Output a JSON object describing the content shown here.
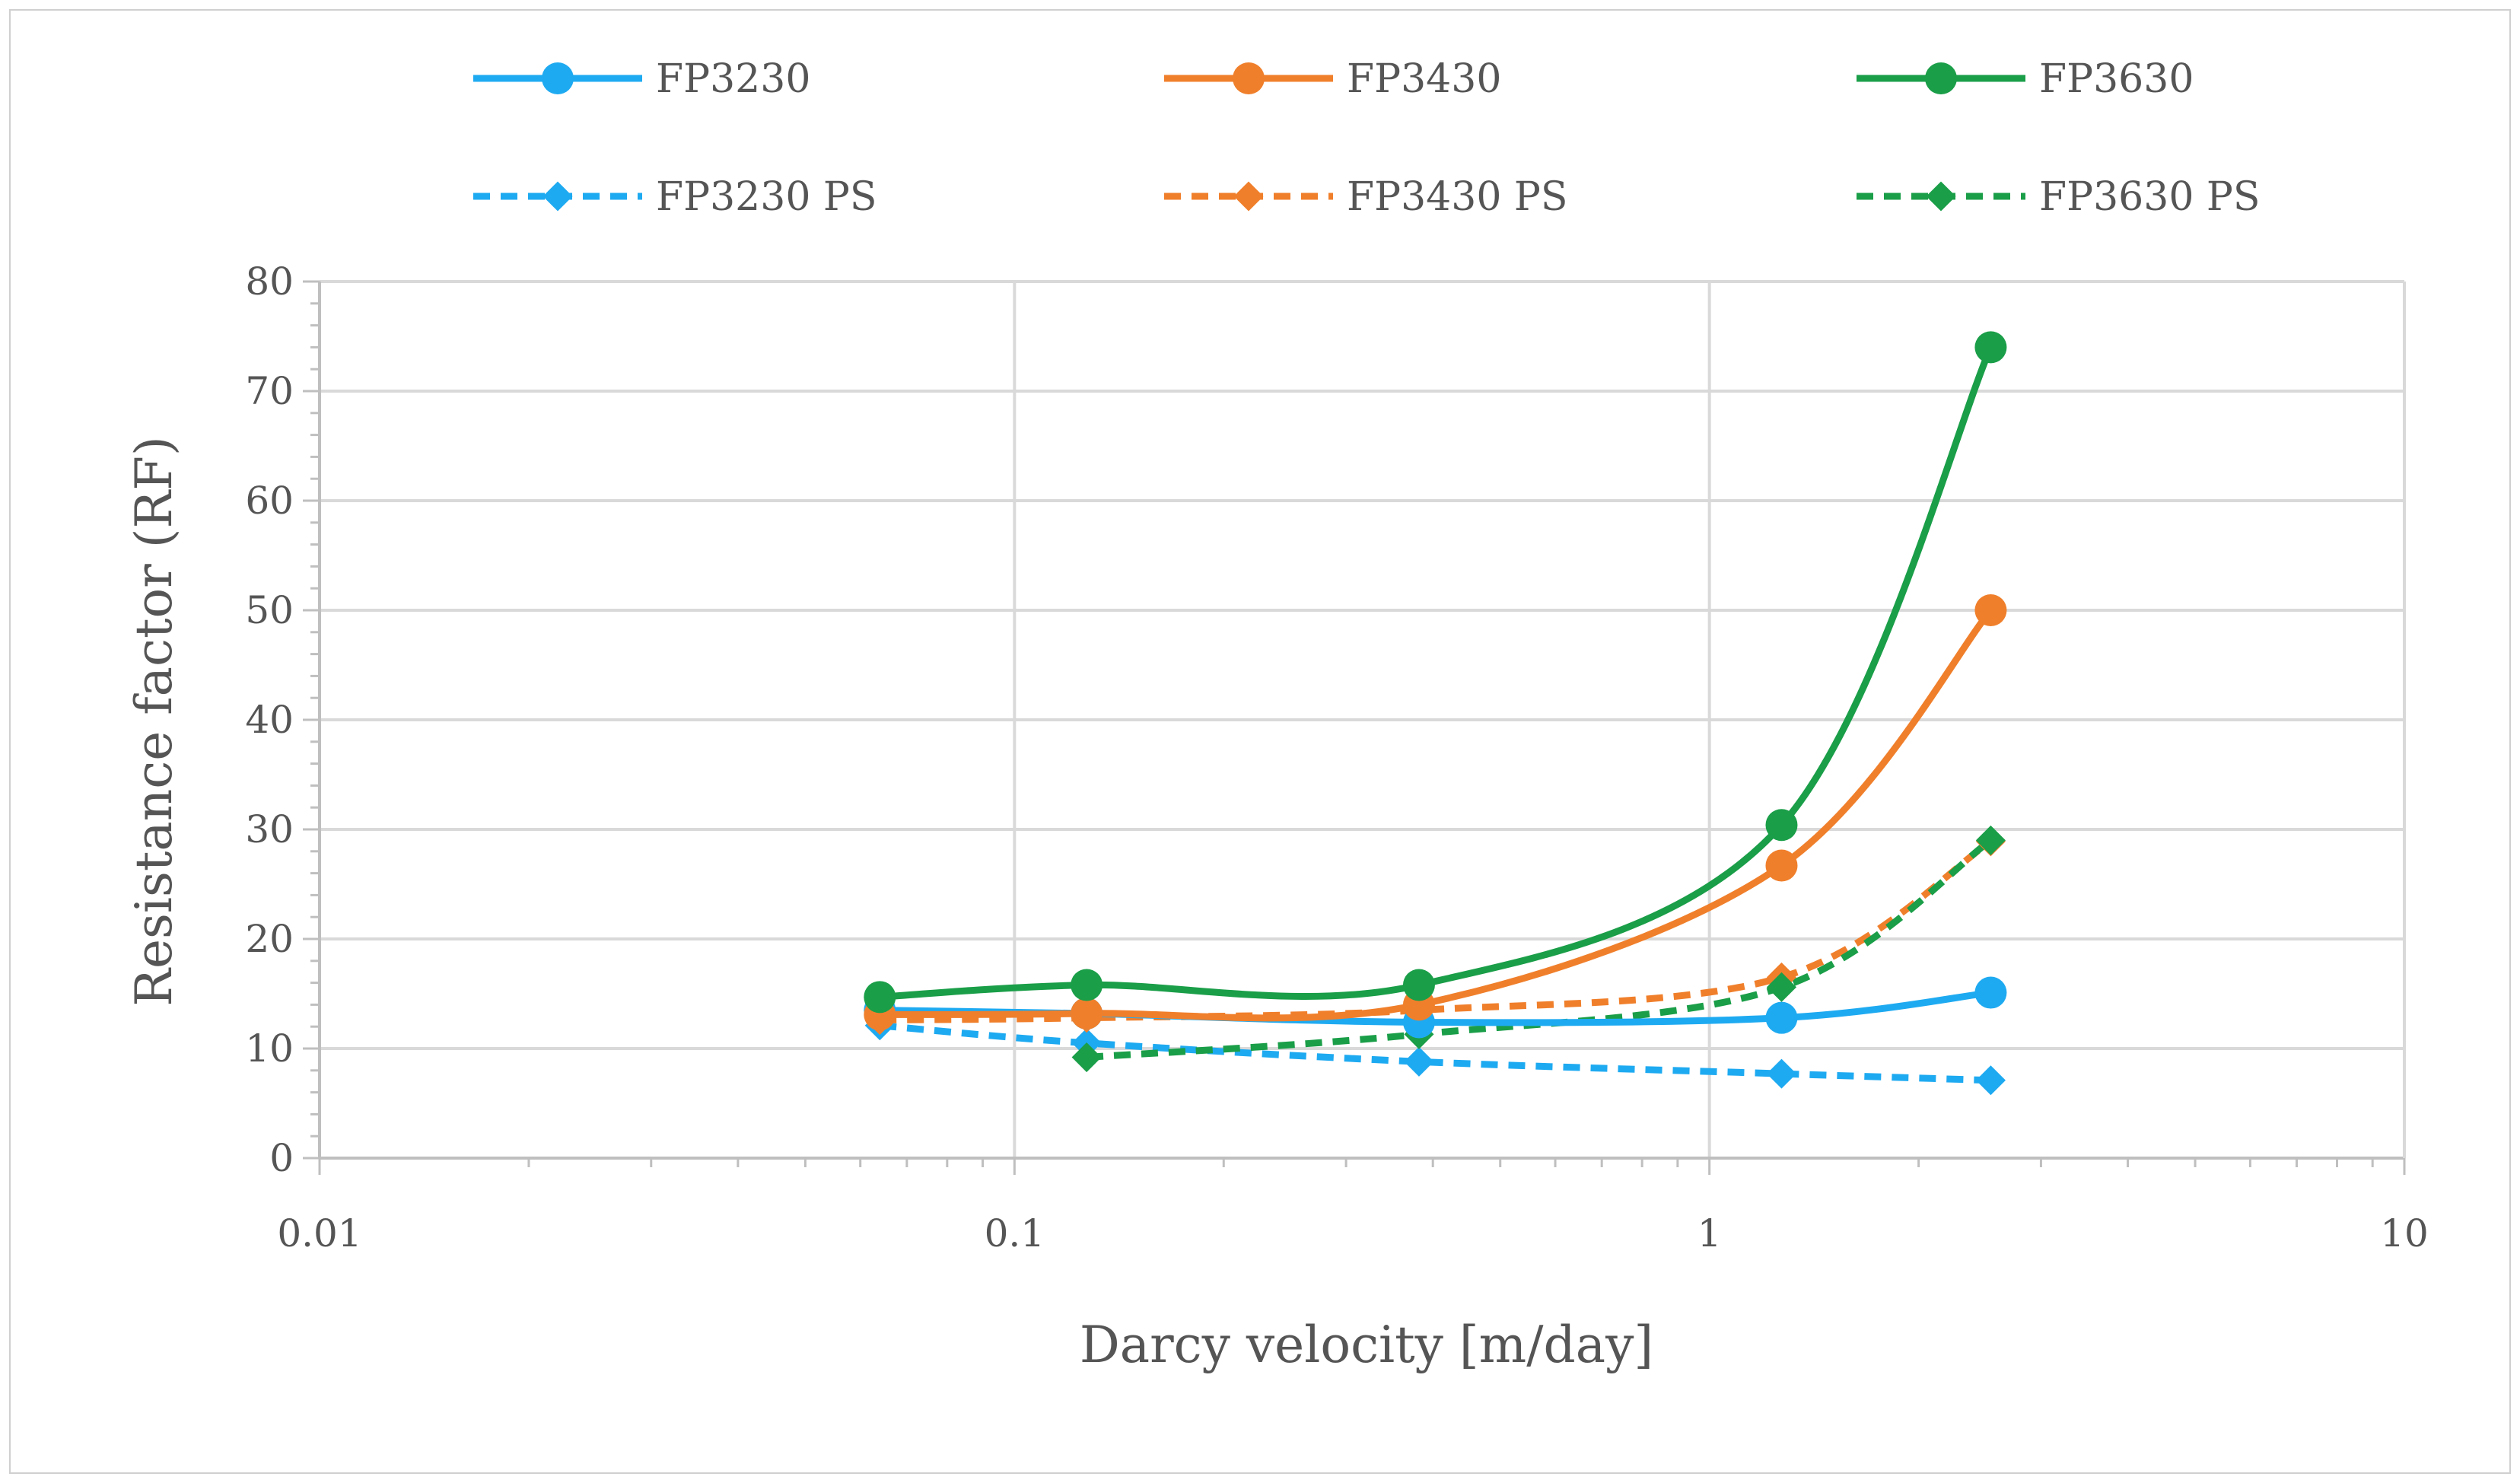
{
  "chart_data": {
    "type": "line",
    "xlabel": "Darcy velocity [m/day]",
    "ylabel": "Resistance factor (RF)",
    "xscale": "log",
    "xlim": [
      0.01,
      10
    ],
    "ylim": [
      0,
      80
    ],
    "x_ticks": [
      0.01,
      0.1,
      1,
      10
    ],
    "x_tick_labels": [
      "0.01",
      "0.1",
      "1",
      "10"
    ],
    "y_ticks": [
      0,
      10,
      20,
      30,
      40,
      50,
      60,
      70,
      80
    ],
    "y_tick_labels": [
      "0",
      "10",
      "20",
      "30",
      "40",
      "50",
      "60",
      "70",
      "80"
    ],
    "grid": true,
    "legend_position": "top",
    "series": [
      {
        "name": "FP3230",
        "color": "#1eaaf1",
        "dash": "solid",
        "marker": "circle",
        "x": [
          0.064,
          0.127,
          0.382,
          1.27,
          2.54
        ],
        "y": [
          13.5,
          13.2,
          12.4,
          12.8,
          15.1
        ]
      },
      {
        "name": "FP3430",
        "color": "#f07f2b",
        "dash": "solid",
        "marker": "circle",
        "x": [
          0.064,
          0.127,
          0.382,
          1.27,
          2.54
        ],
        "y": [
          13.1,
          13.2,
          14.0,
          26.7,
          50.0
        ]
      },
      {
        "name": "FP3630",
        "color": "#1a9e48",
        "dash": "solid",
        "marker": "circle",
        "x": [
          0.064,
          0.127,
          0.382,
          1.27,
          2.54
        ],
        "y": [
          14.7,
          15.8,
          15.8,
          30.4,
          74.0
        ]
      },
      {
        "name": "FP3230 PS",
        "color": "#1eaaf1",
        "dash": "dashed",
        "marker": "diamond",
        "x": [
          0.064,
          0.127,
          0.382,
          1.27,
          2.54
        ],
        "y": [
          12.1,
          10.5,
          8.8,
          7.7,
          7.1
        ]
      },
      {
        "name": "FP3430 PS",
        "color": "#f07f2b",
        "dash": "dashed",
        "marker": "diamond",
        "x": [
          0.064,
          0.127,
          0.382,
          1.27,
          2.54
        ],
        "y": [
          12.6,
          12.8,
          13.5,
          16.5,
          28.9
        ]
      },
      {
        "name": "FP3630 PS",
        "color": "#1a9e48",
        "dash": "dashed",
        "marker": "diamond",
        "x": [
          0.127,
          0.382,
          1.27,
          2.54
        ],
        "y": [
          9.2,
          11.3,
          15.6,
          29.0
        ]
      }
    ]
  }
}
